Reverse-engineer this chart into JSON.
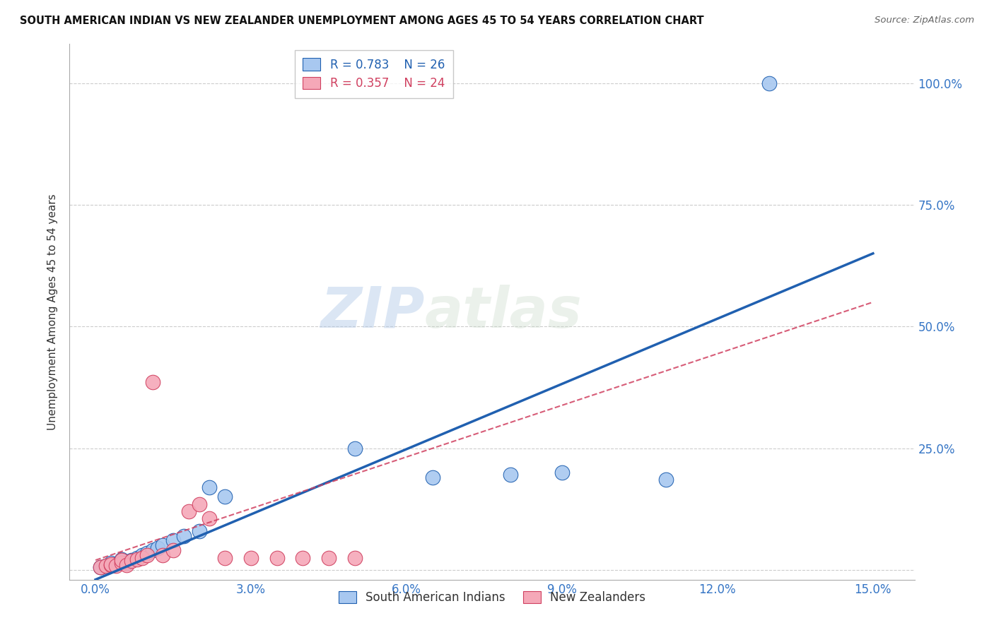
{
  "title": "SOUTH AMERICAN INDIAN VS NEW ZEALANDER UNEMPLOYMENT AMONG AGES 45 TO 54 YEARS CORRELATION CHART",
  "source": "Source: ZipAtlas.com",
  "xlabel_ticks": [
    "0.0%",
    "3.0%",
    "6.0%",
    "9.0%",
    "12.0%",
    "15.0%"
  ],
  "xlabel_vals": [
    0.0,
    0.03,
    0.06,
    0.09,
    0.12,
    0.15
  ],
  "ylabel_ticks": [
    "",
    "25.0%",
    "50.0%",
    "75.0%",
    "100.0%"
  ],
  "ylabel_vals": [
    0.0,
    0.25,
    0.5,
    0.75,
    1.0
  ],
  "ylabel_label": "Unemployment Among Ages 45 to 54 years",
  "blue_R": "R = 0.783",
  "blue_N": "N = 26",
  "pink_R": "R = 0.357",
  "pink_N": "N = 24",
  "blue_color": "#A8C8F0",
  "pink_color": "#F5A8B8",
  "blue_line_color": "#2060B0",
  "pink_line_color": "#D04060",
  "legend_blue_label": "South American Indians",
  "legend_pink_label": "New Zealanders",
  "watermark_zip": "ZIP",
  "watermark_atlas": "atlas",
  "blue_scatter_x": [
    0.001,
    0.002,
    0.003,
    0.003,
    0.004,
    0.005,
    0.005,
    0.006,
    0.007,
    0.008,
    0.009,
    0.01,
    0.011,
    0.012,
    0.013,
    0.015,
    0.017,
    0.02,
    0.022,
    0.025,
    0.05,
    0.065,
    0.08,
    0.09,
    0.11,
    0.13
  ],
  "blue_scatter_y": [
    0.005,
    0.008,
    0.01,
    0.015,
    0.012,
    0.018,
    0.022,
    0.015,
    0.02,
    0.025,
    0.03,
    0.035,
    0.04,
    0.045,
    0.05,
    0.06,
    0.07,
    0.08,
    0.17,
    0.15,
    0.25,
    0.19,
    0.195,
    0.2,
    0.185,
    1.0
  ],
  "pink_scatter_x": [
    0.001,
    0.002,
    0.003,
    0.003,
    0.004,
    0.005,
    0.005,
    0.006,
    0.007,
    0.008,
    0.009,
    0.01,
    0.011,
    0.013,
    0.015,
    0.018,
    0.02,
    0.022,
    0.025,
    0.03,
    0.035,
    0.04,
    0.045,
    0.05
  ],
  "pink_scatter_y": [
    0.005,
    0.008,
    0.01,
    0.012,
    0.008,
    0.015,
    0.02,
    0.01,
    0.018,
    0.022,
    0.025,
    0.03,
    0.385,
    0.03,
    0.04,
    0.12,
    0.135,
    0.105,
    0.025,
    0.025,
    0.025,
    0.025,
    0.025,
    0.025
  ],
  "blue_line_x0": 0.0,
  "blue_line_y0": -0.02,
  "blue_line_x1": 0.15,
  "blue_line_y1": 0.65,
  "pink_line_x0": 0.0,
  "pink_line_y0": 0.02,
  "pink_line_x1": 0.15,
  "pink_line_y1": 0.55,
  "xlim": [
    -0.005,
    0.158
  ],
  "ylim": [
    -0.02,
    1.08
  ],
  "bg_color": "#FFFFFF",
  "grid_color": "#CCCCCC"
}
